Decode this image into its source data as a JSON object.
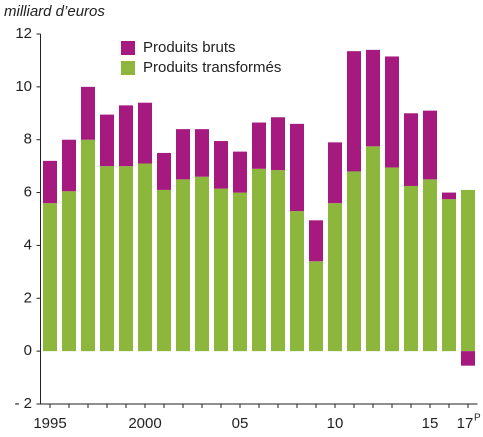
{
  "chart_data": {
    "type": "stacked_bar",
    "y_label": "milliard d’euros",
    "categories": [
      "1995",
      null,
      null,
      null,
      null,
      "2000",
      null,
      null,
      null,
      null,
      "05",
      null,
      null,
      null,
      null,
      "10",
      null,
      null,
      null,
      null,
      "15",
      null,
      "17"
    ],
    "provisional_mark": "P",
    "series": [
      {
        "name": "Produits transformés",
        "color": "#8db63c",
        "values": [
          5.6,
          6.05,
          8.0,
          7.0,
          7.0,
          7.1,
          6.1,
          6.5,
          6.6,
          6.15,
          6.0,
          6.9,
          6.85,
          5.3,
          3.4,
          5.6,
          6.8,
          7.75,
          6.95,
          6.25,
          6.5,
          5.75,
          6.1
        ]
      },
      {
        "name": "Produits bruts",
        "color": "#a6197f",
        "values": [
          1.6,
          1.95,
          2.0,
          1.95,
          2.3,
          2.3,
          1.4,
          1.9,
          1.8,
          1.8,
          1.55,
          1.75,
          2.0,
          3.3,
          1.55,
          2.3,
          4.55,
          3.65,
          4.2,
          2.75,
          2.6,
          0.25,
          -0.55
        ]
      }
    ],
    "ylim": [
      -2,
      12
    ],
    "yticks": [
      {
        "value": -2,
        "label": "- 2"
      },
      0,
      2,
      4,
      6,
      8,
      10,
      12
    ]
  }
}
